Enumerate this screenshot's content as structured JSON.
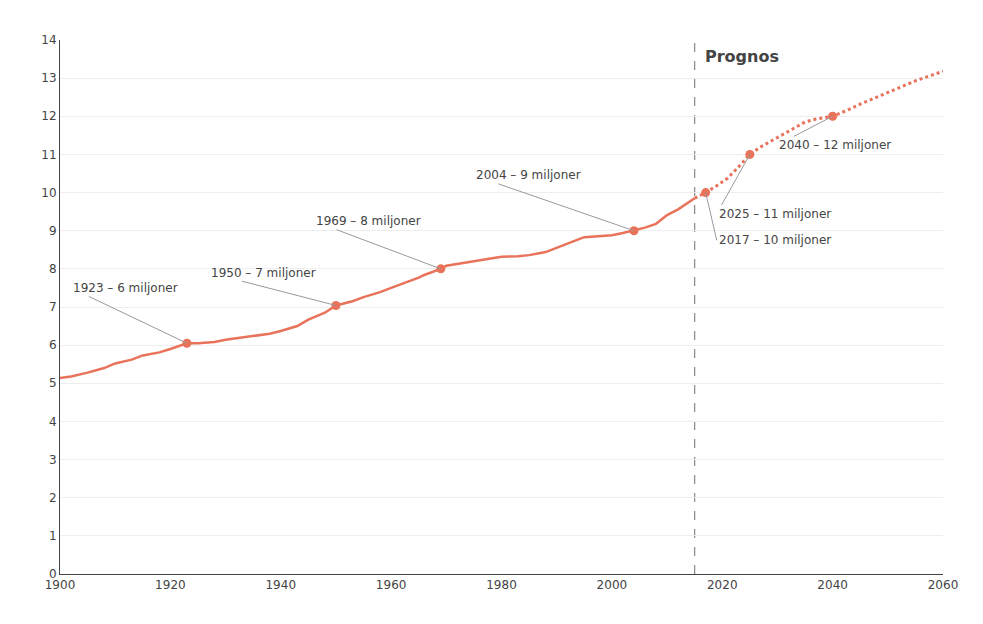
{
  "chart_data": {
    "type": "line",
    "xlim": [
      1900,
      2060
    ],
    "ylim": [
      0,
      14
    ],
    "xticks": [
      1900,
      1920,
      1940,
      1960,
      1980,
      2000,
      2020,
      2040,
      2060
    ],
    "yticks": [
      0,
      1,
      2,
      3,
      4,
      5,
      6,
      7,
      8,
      9,
      10,
      11,
      12,
      13,
      14
    ],
    "grid": true,
    "series": [
      {
        "type": "line",
        "line_style": "solid",
        "color": "#E8735A",
        "x": [
          1900,
          1902,
          1905,
          1908,
          1910,
          1913,
          1915,
          1918,
          1920,
          1923,
          1925,
          1928,
          1930,
          1932,
          1935,
          1938,
          1940,
          1943,
          1945,
          1948,
          1950,
          1953,
          1955,
          1958,
          1960,
          1963,
          1965,
          1966,
          1969,
          1970,
          1972,
          1975,
          1978,
          1980,
          1983,
          1985,
          1988,
          1990,
          1993,
          1995,
          1998,
          2000,
          2002,
          2004,
          2006,
          2008,
          2010,
          2012,
          2014,
          2015
        ],
        "values": [
          5.14,
          5.18,
          5.28,
          5.4,
          5.52,
          5.62,
          5.73,
          5.81,
          5.9,
          6.05,
          6.05,
          6.08,
          6.14,
          6.18,
          6.24,
          6.3,
          6.37,
          6.5,
          6.67,
          6.85,
          7.04,
          7.15,
          7.26,
          7.39,
          7.5,
          7.65,
          7.77,
          7.84,
          8.0,
          8.08,
          8.13,
          8.19,
          8.27,
          8.32,
          8.33,
          8.36,
          8.44,
          8.56,
          8.72,
          8.83,
          8.85,
          8.88,
          8.94,
          9.0,
          9.08,
          9.18,
          9.41,
          9.56,
          9.74,
          9.85
        ]
      },
      {
        "type": "line",
        "line_style": "dotted",
        "color": "#E8735A",
        "x": [
          2015,
          2017,
          2019,
          2021,
          2023,
          2025,
          2027,
          2030,
          2033,
          2035,
          2037,
          2040,
          2043,
          2045,
          2048,
          2050,
          2053,
          2055,
          2058,
          2060
        ],
        "values": [
          9.85,
          10.0,
          10.18,
          10.38,
          10.68,
          11.0,
          11.2,
          11.45,
          11.68,
          11.85,
          11.93,
          12.0,
          12.18,
          12.32,
          12.5,
          12.62,
          12.82,
          12.93,
          13.08,
          13.18
        ]
      },
      {
        "type": "scatter",
        "marker": "circle",
        "color": "#E8735A",
        "x": [
          1923,
          1950,
          1969,
          2004,
          2017,
          2025,
          2040
        ],
        "values": [
          6.05,
          7.04,
          8.0,
          9.0,
          10.0,
          11.0,
          12.0
        ]
      }
    ],
    "vline": {
      "x": 2015,
      "label": "Prognos"
    },
    "annotations": [
      {
        "text": "1923 – 6 miljoner",
        "x": 1923,
        "y": 6.05,
        "text_x": 1902,
        "text_y": 7.5
      },
      {
        "text": "1950 – 7 miljoner",
        "x": 1950,
        "y": 7.04,
        "text_x": 1927,
        "text_y": 7.9
      },
      {
        "text": "1969 – 8 miljoner",
        "x": 1969,
        "y": 8.0,
        "text_x": 1946,
        "text_y": 9.25
      },
      {
        "text": "2004 – 9 miljoner",
        "x": 2004,
        "y": 9.0,
        "text_x": 1975,
        "text_y": 10.45
      },
      {
        "text": "2017 – 10 miljoner",
        "x": 2017,
        "y": 10.0,
        "text_x": 2019,
        "text_y": 8.75
      },
      {
        "text": "2025 – 11 miljoner",
        "x": 2025,
        "y": 11.0,
        "text_x": 2019,
        "text_y": 9.45
      },
      {
        "text": "2040 – 12 miljoner",
        "x": 2040,
        "y": 12.0,
        "text_x": 2030,
        "text_y": 11.25
      }
    ]
  }
}
